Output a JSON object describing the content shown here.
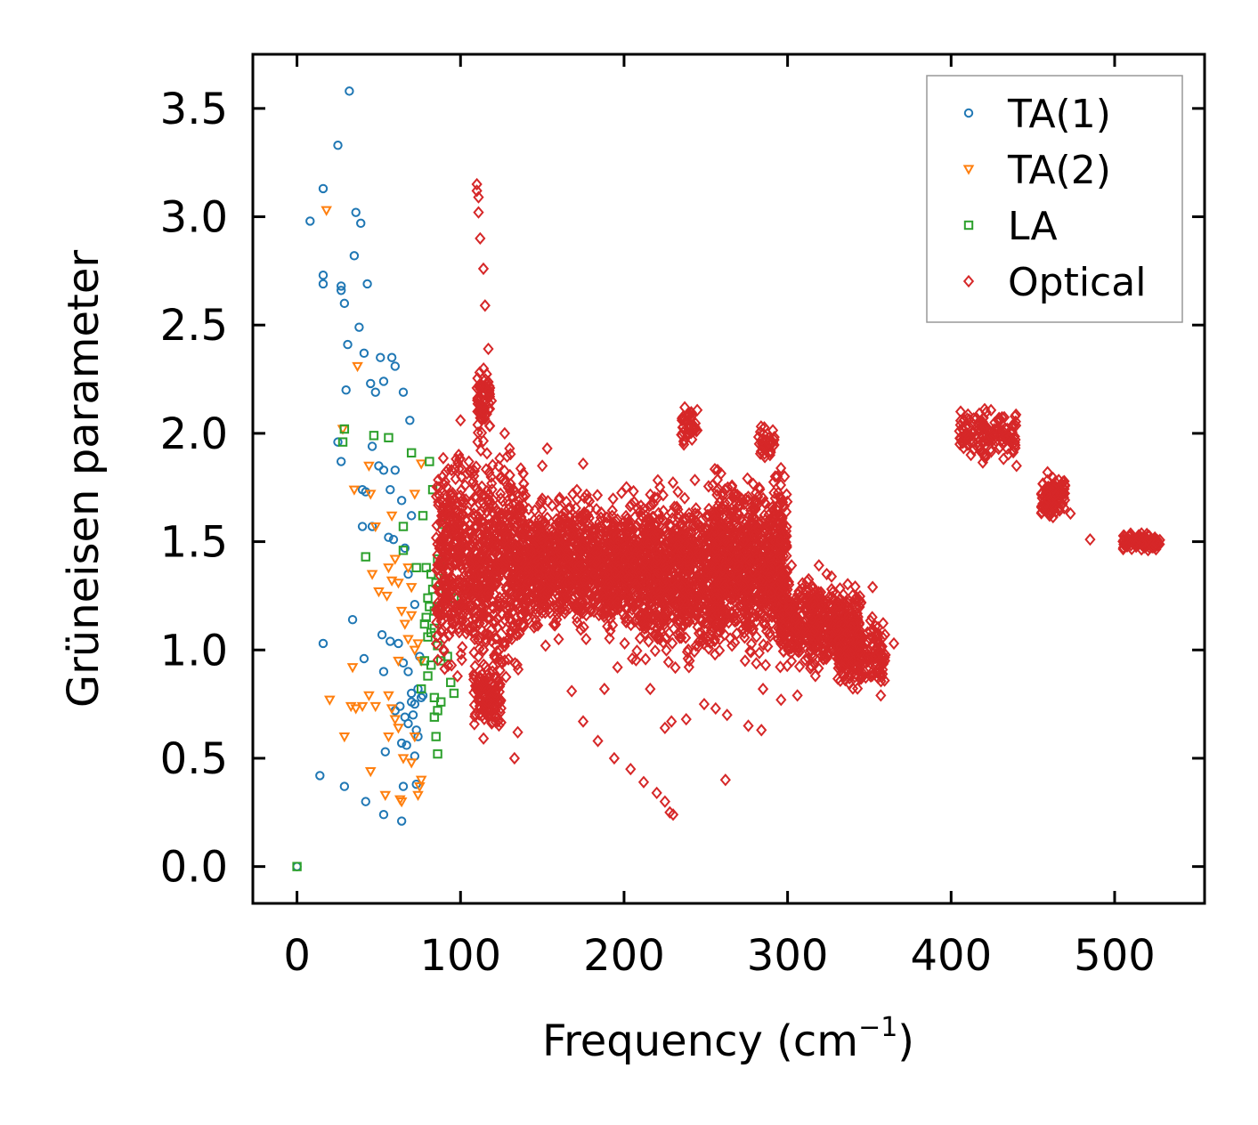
{
  "chart_data": {
    "type": "scatter",
    "title": "",
    "xlabel": "Frequency (cm",
    "xlabel_sup": "−1",
    "xlabel_end": ")",
    "ylabel": "Grüneisen parameter",
    "xlim": [
      -27,
      555
    ],
    "ylim": [
      -0.17,
      3.75
    ],
    "xticks": [
      0,
      100,
      200,
      300,
      400,
      500
    ],
    "xtick_labels": [
      "0",
      "100",
      "200",
      "300",
      "400",
      "500"
    ],
    "yticks": [
      0.0,
      0.5,
      1.0,
      1.5,
      2.0,
      2.5,
      3.0,
      3.5
    ],
    "ytick_labels": [
      "0.0",
      "0.5",
      "1.0",
      "1.5",
      "2.0",
      "2.5",
      "3.0",
      "3.5"
    ],
    "grid": false,
    "legend_position": "top-right",
    "series": [
      {
        "name": "TA(1)",
        "marker": "circle",
        "color": "#1f77b4",
        "points": [
          [
            0,
            0.0
          ],
          [
            8,
            2.98
          ],
          [
            16,
            3.13
          ],
          [
            16,
            2.73
          ],
          [
            16,
            2.69
          ],
          [
            25,
            3.33
          ],
          [
            27,
            2.68
          ],
          [
            27,
            2.66
          ],
          [
            29,
            2.6
          ],
          [
            32,
            3.58
          ],
          [
            31,
            2.41
          ],
          [
            36,
            3.02
          ],
          [
            35,
            2.82
          ],
          [
            38,
            2.49
          ],
          [
            39,
            2.97
          ],
          [
            41,
            2.37
          ],
          [
            43,
            2.69
          ],
          [
            30,
            2.2
          ],
          [
            45,
            2.23
          ],
          [
            48,
            2.19
          ],
          [
            51,
            2.35
          ],
          [
            53,
            2.24
          ],
          [
            58,
            2.35
          ],
          [
            60,
            2.31
          ],
          [
            65,
            2.19
          ],
          [
            25,
            1.96
          ],
          [
            27,
            1.87
          ],
          [
            40,
            1.74
          ],
          [
            42,
            1.73
          ],
          [
            46,
            1.94
          ],
          [
            50,
            1.85
          ],
          [
            53,
            1.83
          ],
          [
            57,
            1.74
          ],
          [
            60,
            1.83
          ],
          [
            64,
            1.69
          ],
          [
            69,
            2.06
          ],
          [
            40,
            1.57
          ],
          [
            46,
            1.57
          ],
          [
            56,
            1.52
          ],
          [
            59,
            1.51
          ],
          [
            66,
            1.47
          ],
          [
            70,
            1.62
          ],
          [
            68,
            1.35
          ],
          [
            72,
            1.21
          ],
          [
            34,
            1.14
          ],
          [
            16,
            1.03
          ],
          [
            41,
            0.96
          ],
          [
            52,
            1.07
          ],
          [
            53,
            0.9
          ],
          [
            57,
            1.04
          ],
          [
            62,
            1.03
          ],
          [
            65,
            0.94
          ],
          [
            68,
            0.9
          ],
          [
            70,
            0.8
          ],
          [
            72,
            0.75
          ],
          [
            74,
            0.82
          ],
          [
            75,
            0.97
          ],
          [
            63,
            0.74
          ],
          [
            66,
            0.69
          ],
          [
            68,
            0.66
          ],
          [
            70,
            0.76
          ],
          [
            71,
            0.7
          ],
          [
            73,
            0.63
          ],
          [
            74,
            0.6
          ],
          [
            76,
            0.78
          ],
          [
            77,
            0.79
          ],
          [
            64,
            0.57
          ],
          [
            67,
            0.56
          ],
          [
            72,
            0.51
          ],
          [
            54,
            0.53
          ],
          [
            14,
            0.42
          ],
          [
            29,
            0.37
          ],
          [
            42,
            0.3
          ],
          [
            53,
            0.24
          ],
          [
            64,
            0.21
          ],
          [
            65,
            0.37
          ],
          [
            73,
            0.38
          ],
          [
            60,
            0.72
          ]
        ]
      },
      {
        "name": "TA(2)",
        "marker": "triangle-down",
        "color": "#ff7f0e",
        "points": [
          [
            18,
            3.03
          ],
          [
            37,
            2.31
          ],
          [
            28,
            2.02
          ],
          [
            44,
            1.85
          ],
          [
            35,
            1.74
          ],
          [
            45,
            1.72
          ],
          [
            48,
            1.57
          ],
          [
            58,
            1.62
          ],
          [
            72,
            1.72
          ],
          [
            76,
            1.86
          ],
          [
            56,
            1.38
          ],
          [
            60,
            1.42
          ],
          [
            58,
            1.32
          ],
          [
            62,
            1.31
          ],
          [
            68,
            1.38
          ],
          [
            70,
            1.29
          ],
          [
            46,
            1.35
          ],
          [
            50,
            1.27
          ],
          [
            55,
            1.25
          ],
          [
            64,
            1.18
          ],
          [
            66,
            1.12
          ],
          [
            70,
            1.16
          ],
          [
            72,
            1.0
          ],
          [
            74,
            1.03
          ],
          [
            34,
            0.92
          ],
          [
            33,
            0.74
          ],
          [
            20,
            0.77
          ],
          [
            36,
            0.73
          ],
          [
            40,
            0.74
          ],
          [
            44,
            0.79
          ],
          [
            48,
            0.74
          ],
          [
            56,
            0.79
          ],
          [
            58,
            0.73
          ],
          [
            60,
            0.68
          ],
          [
            62,
            0.64
          ],
          [
            65,
            0.5
          ],
          [
            70,
            0.48
          ],
          [
            45,
            0.44
          ],
          [
            56,
            0.6
          ],
          [
            29,
            0.6
          ],
          [
            54,
            0.33
          ],
          [
            63,
            0.31
          ],
          [
            74,
            0.33
          ],
          [
            75,
            0.37
          ],
          [
            76,
            0.4
          ],
          [
            62,
            0.95
          ],
          [
            68,
            1.05
          ],
          [
            76,
            0.95
          ],
          [
            64,
            0.3
          ],
          [
            72,
            0.6
          ]
        ]
      },
      {
        "name": "LA",
        "marker": "square",
        "color": "#2ca02c",
        "points": [
          [
            0,
            0.0
          ],
          [
            29,
            2.02
          ],
          [
            28,
            1.96
          ],
          [
            47,
            1.99
          ],
          [
            56,
            1.98
          ],
          [
            70,
            1.91
          ],
          [
            81,
            1.87
          ],
          [
            83,
            1.74
          ],
          [
            77,
            1.62
          ],
          [
            89,
            1.58
          ],
          [
            65,
            1.57
          ],
          [
            65,
            1.46
          ],
          [
            42,
            1.43
          ],
          [
            73,
            1.38
          ],
          [
            79,
            1.38
          ],
          [
            82,
            1.35
          ],
          [
            86,
            1.42
          ],
          [
            88,
            1.4
          ],
          [
            92,
            1.5
          ],
          [
            85,
            1.31
          ],
          [
            80,
            1.24
          ],
          [
            81,
            1.2
          ],
          [
            84,
            1.18
          ],
          [
            86,
            1.2
          ],
          [
            91,
            1.25
          ],
          [
            96,
            1.24
          ],
          [
            78,
            1.12
          ],
          [
            80,
            1.06
          ],
          [
            82,
            1.08
          ],
          [
            84,
            1.1
          ],
          [
            86,
            1.02
          ],
          [
            88,
            0.95
          ],
          [
            92,
            0.97
          ],
          [
            94,
            0.85
          ],
          [
            96,
            0.8
          ],
          [
            78,
            0.95
          ],
          [
            82,
            0.93
          ],
          [
            84,
            0.78
          ],
          [
            86,
            0.72
          ],
          [
            88,
            0.76
          ],
          [
            84,
            0.69
          ],
          [
            85,
            0.6
          ],
          [
            86,
            0.52
          ],
          [
            76,
            0.82
          ],
          [
            80,
            0.88
          ],
          [
            90,
            1.33
          ],
          [
            83,
            1.28
          ],
          [
            79,
            1.15
          ]
        ]
      },
      {
        "name": "Optical",
        "marker": "diamond",
        "color": "#d62728",
        "points": [],
        "clusters": [
          {
            "x": [
              85,
              140
            ],
            "y": [
              0.75,
              2.05
            ],
            "count": 900
          },
          {
            "x": [
              140,
              200
            ],
            "y": [
              1.0,
              1.8
            ],
            "count": 900
          },
          {
            "x": [
              200,
              260
            ],
            "y": [
              0.85,
              1.85
            ],
            "count": 1000
          },
          {
            "x": [
              255,
              300
            ],
            "y": [
              0.9,
              1.9
            ],
            "count": 900
          },
          {
            "x": [
              295,
              345
            ],
            "y": [
              0.85,
              1.4
            ],
            "count": 500
          },
          {
            "x": [
              330,
              360
            ],
            "y": [
              0.78,
              1.2
            ],
            "count": 200
          },
          {
            "x": [
              108,
              125
            ],
            "y": [
              0.55,
              1.0
            ],
            "count": 120
          },
          {
            "x": [
              110,
              118
            ],
            "y": [
              1.95,
              2.35
            ],
            "count": 60
          },
          {
            "x": [
              235,
              245
            ],
            "y": [
              1.9,
              2.15
            ],
            "count": 40
          },
          {
            "x": [
              282,
              292
            ],
            "y": [
              1.85,
              2.05
            ],
            "count": 40
          },
          {
            "x": [
              405,
              440
            ],
            "y": [
              1.85,
              2.15
            ],
            "count": 140
          },
          {
            "x": [
              455,
              470
            ],
            "y": [
              1.55,
              1.85
            ],
            "count": 90
          },
          {
            "x": [
              505,
              528
            ],
            "y": [
              1.45,
              1.55
            ],
            "count": 90
          }
        ],
        "outliers": [
          [
            110,
            3.15
          ],
          [
            110,
            3.12
          ],
          [
            111,
            3.09
          ],
          [
            111,
            3.02
          ],
          [
            112,
            2.9
          ],
          [
            114,
            2.76
          ],
          [
            115,
            2.59
          ],
          [
            117,
            2.39
          ],
          [
            114,
            2.1
          ],
          [
            119,
            2.15
          ],
          [
            135,
            0.62
          ],
          [
            133,
            0.5
          ],
          [
            153,
            1.93
          ],
          [
            150,
            1.85
          ],
          [
            175,
            1.86
          ],
          [
            168,
            0.81
          ],
          [
            175,
            0.67
          ],
          [
            184,
            0.58
          ],
          [
            194,
            0.5
          ],
          [
            204,
            0.45
          ],
          [
            212,
            0.39
          ],
          [
            220,
            0.34
          ],
          [
            225,
            0.3
          ],
          [
            228,
            0.25
          ],
          [
            230,
            0.24
          ],
          [
            262,
            0.4
          ],
          [
            249,
            0.75
          ],
          [
            256,
            0.73
          ],
          [
            263,
            0.7
          ],
          [
            276,
            0.65
          ],
          [
            284,
            0.63
          ],
          [
            229,
            0.67
          ],
          [
            238,
            0.68
          ],
          [
            188,
            0.82
          ],
          [
            196,
            0.92
          ],
          [
            205,
            0.96
          ],
          [
            216,
            0.82
          ],
          [
            225,
            0.64
          ],
          [
            152,
            1.02
          ],
          [
            160,
            1.05
          ],
          [
            240,
            0.95
          ],
          [
            244,
            1.02
          ],
          [
            266,
            1.02
          ],
          [
            274,
            0.95
          ],
          [
            285,
            0.82
          ],
          [
            296,
            0.77
          ],
          [
            306,
            0.79
          ],
          [
            317,
            0.88
          ],
          [
            352,
            1.29
          ],
          [
            365,
            1.03
          ],
          [
            357,
            0.79
          ],
          [
            485,
            1.51
          ],
          [
            473,
            1.63
          ],
          [
            468,
            1.75
          ],
          [
            440,
            1.85
          ],
          [
            127,
            2.0
          ],
          [
            130,
            1.93
          ],
          [
            100,
            2.06
          ],
          [
            97,
            1.79
          ],
          [
            92,
            1.66
          ]
        ]
      }
    ]
  }
}
